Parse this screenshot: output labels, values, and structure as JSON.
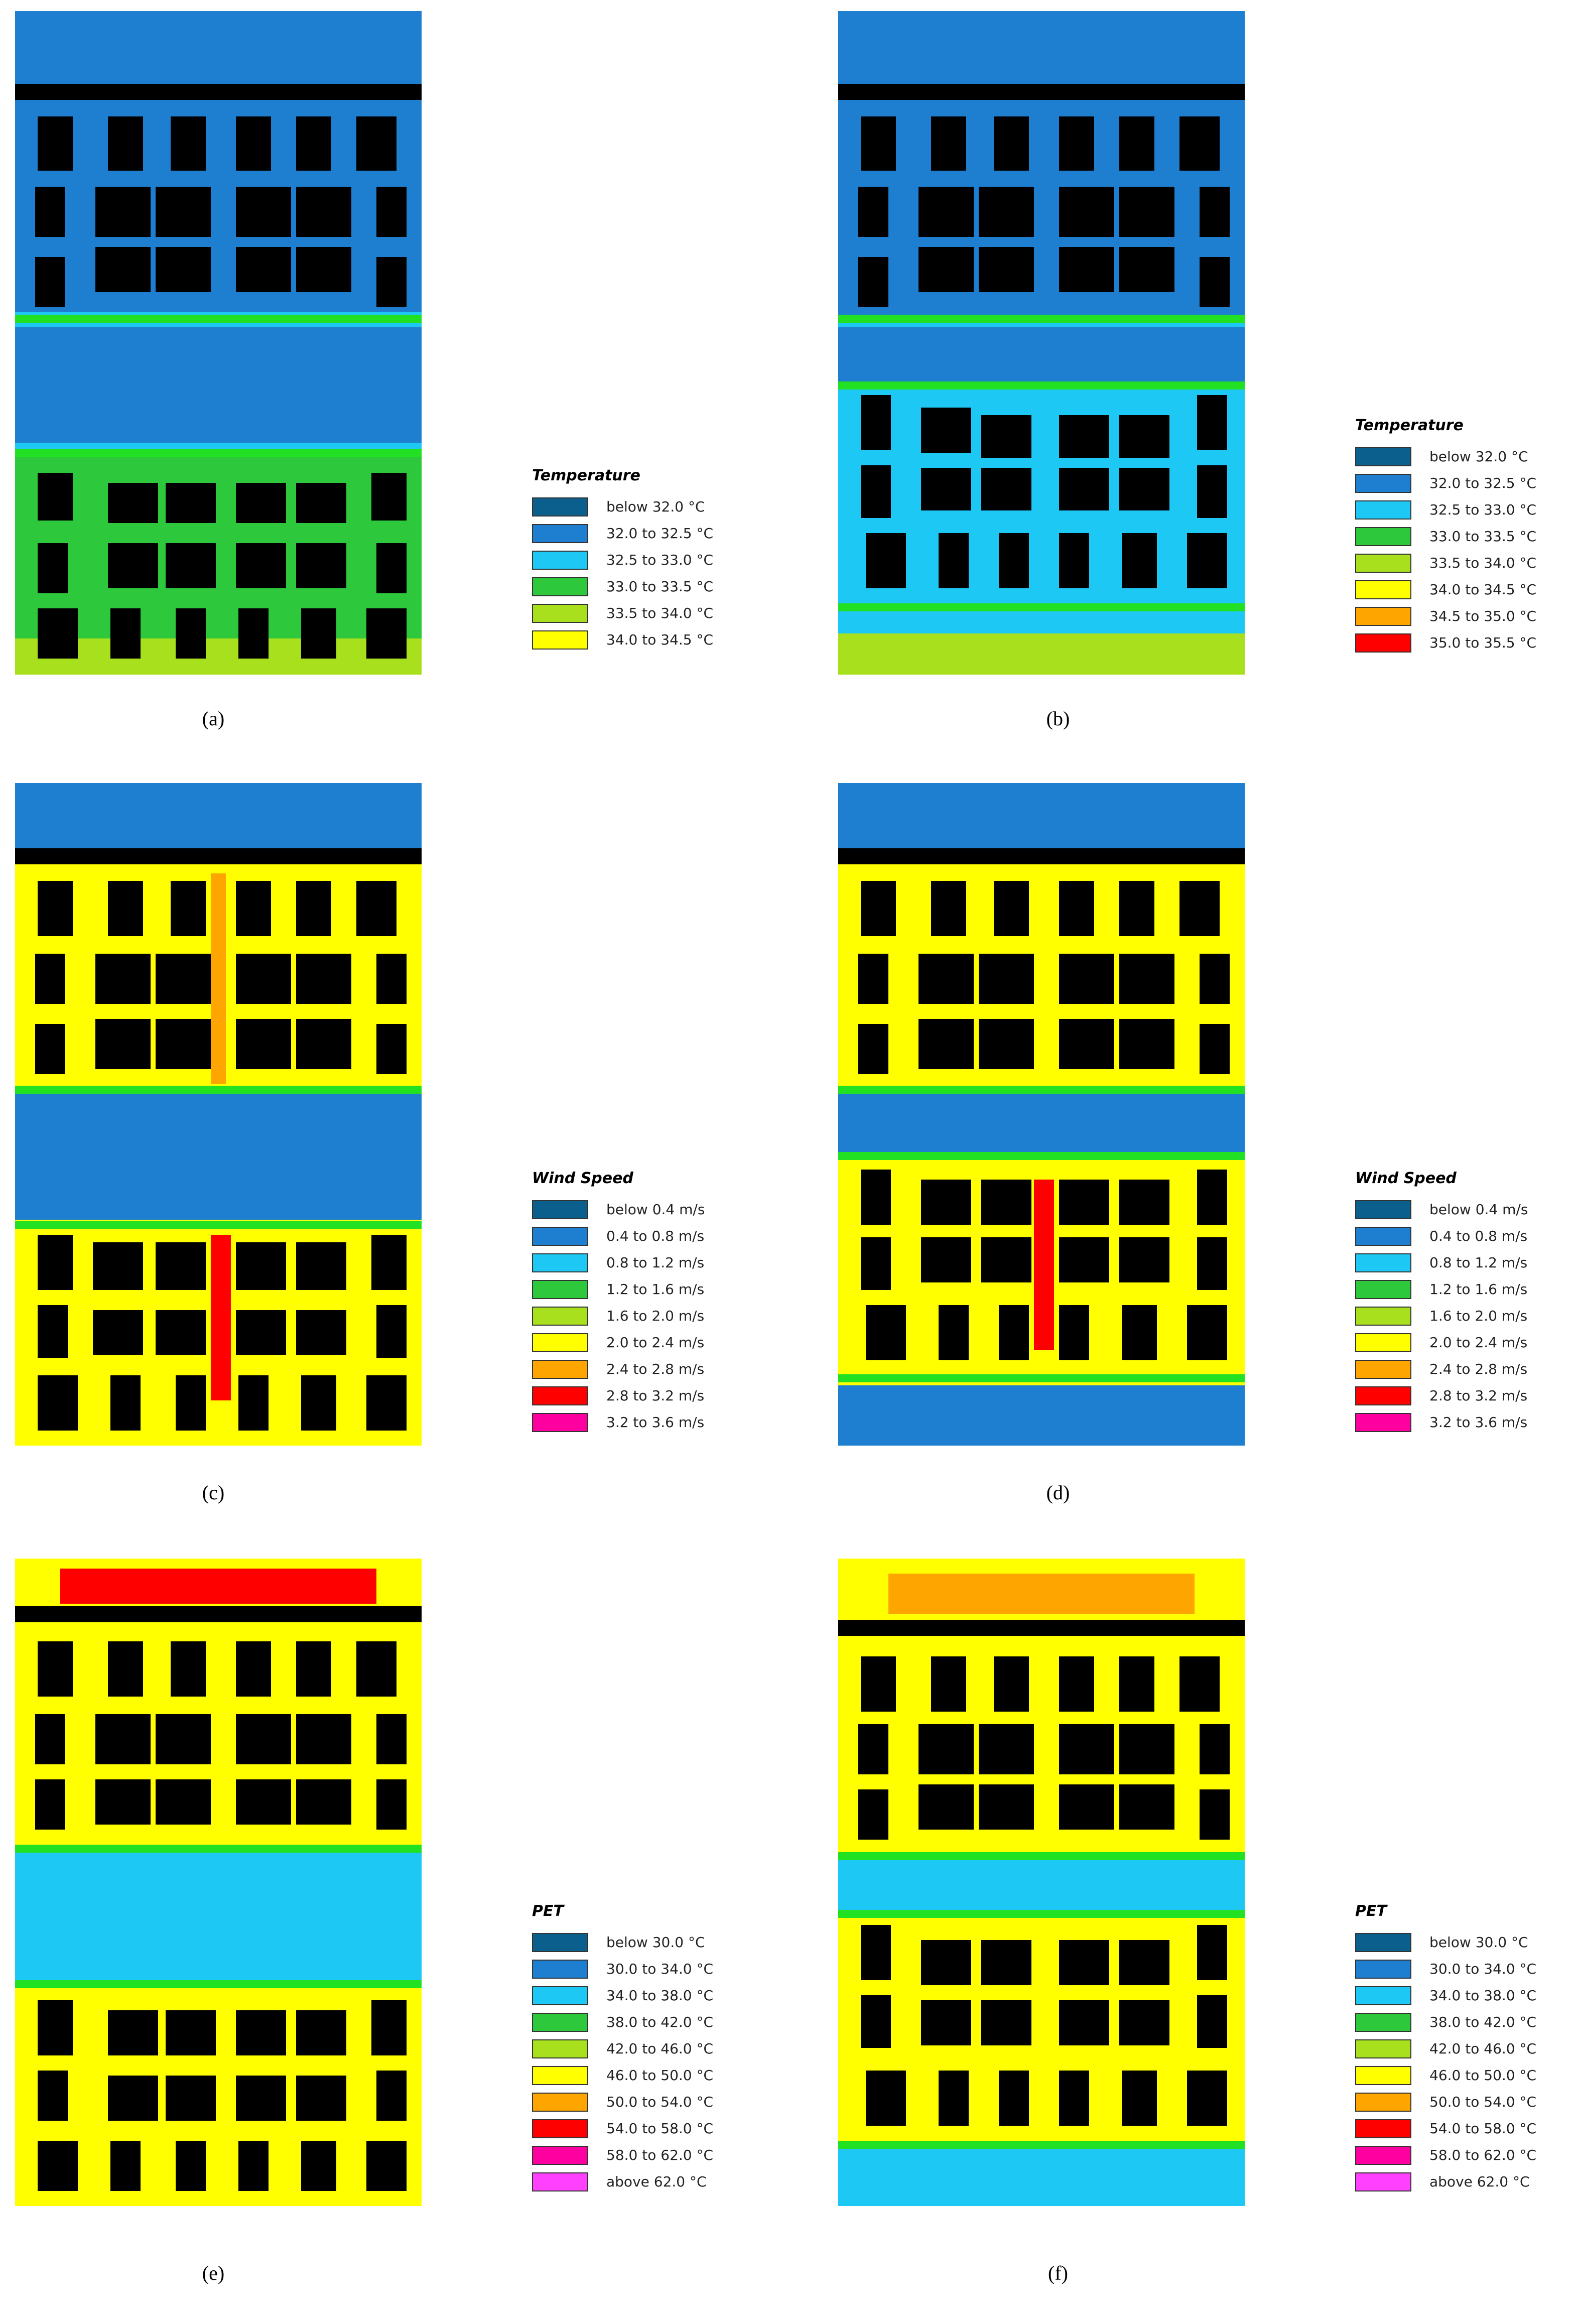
{
  "colors": {
    "building": "#000000",
    "road": "#22e022"
  },
  "panels": [
    {
      "caption": "(a)",
      "legend": "temperature_a"
    },
    {
      "caption": "(b)",
      "legend": "temperature_b"
    },
    {
      "caption": "(c)",
      "legend": "wind"
    },
    {
      "caption": "(d)",
      "legend": "wind"
    },
    {
      "caption": "(e)",
      "legend": "pet"
    },
    {
      "caption": "(f)",
      "legend": "pet"
    }
  ],
  "legends": {
    "temperature_a": {
      "title": "Temperature",
      "items": [
        {
          "label": "below 32.0 °C",
          "color": "#0a5f8c"
        },
        {
          "label": "32.0 to 32.5 °C",
          "color": "#1e7fd0"
        },
        {
          "label": "32.5 to 33.0 °C",
          "color": "#1ec8f5"
        },
        {
          "label": "33.0 to 33.5 °C",
          "color": "#2ec83c"
        },
        {
          "label": "33.5 to 34.0 °C",
          "color": "#a8e01e"
        },
        {
          "label": "34.0 to 34.5 °C",
          "color": "#ffff00"
        }
      ]
    },
    "temperature_b": {
      "title": "Temperature",
      "items": [
        {
          "label": "below 32.0 °C",
          "color": "#0a5f8c"
        },
        {
          "label": "32.0 to 32.5 °C",
          "color": "#1e7fd0"
        },
        {
          "label": "32.5 to 33.0 °C",
          "color": "#1ec8f5"
        },
        {
          "label": "33.0 to 33.5 °C",
          "color": "#2ec83c"
        },
        {
          "label": "33.5 to 34.0 °C",
          "color": "#a8e01e"
        },
        {
          "label": "34.0 to 34.5 °C",
          "color": "#ffff00"
        },
        {
          "label": "34.5 to 35.0 °C",
          "color": "#ffa500"
        },
        {
          "label": "35.0 to 35.5 °C",
          "color": "#ff0000"
        }
      ]
    },
    "wind": {
      "title": "Wind Speed",
      "items": [
        {
          "label": "below 0.4 m/s",
          "color": "#0a5f8c"
        },
        {
          "label": "0.4 to 0.8 m/s",
          "color": "#1e7fd0"
        },
        {
          "label": "0.8 to 1.2 m/s",
          "color": "#1ec8f5"
        },
        {
          "label": "1.2 to 1.6 m/s",
          "color": "#2ec83c"
        },
        {
          "label": "1.6 to 2.0 m/s",
          "color": "#a8e01e"
        },
        {
          "label": "2.0 to 2.4 m/s",
          "color": "#ffff00"
        },
        {
          "label": "2.4 to 2.8 m/s",
          "color": "#ffa500"
        },
        {
          "label": "2.8 to 3.2 m/s",
          "color": "#ff0000"
        },
        {
          "label": "3.2 to 3.6 m/s",
          "color": "#ff00a0"
        }
      ]
    },
    "pet": {
      "title": "PET",
      "items": [
        {
          "label": "below 30.0 °C",
          "color": "#0a5f8c"
        },
        {
          "label": "30.0 to 34.0 °C",
          "color": "#1e7fd0"
        },
        {
          "label": "34.0 to 38.0 °C",
          "color": "#1ec8f5"
        },
        {
          "label": "38.0 to 42.0 °C",
          "color": "#2ec83c"
        },
        {
          "label": "42.0 to 46.0 °C",
          "color": "#a8e01e"
        },
        {
          "label": "46.0 to 50.0 °C",
          "color": "#ffff00"
        },
        {
          "label": "50.0 to 54.0 °C",
          "color": "#ffa500"
        },
        {
          "label": "54.0 to 58.0 °C",
          "color": "#ff0000"
        },
        {
          "label": "58.0 to 62.0 °C",
          "color": "#ff00a0"
        },
        {
          "label": "above 62.0 °C",
          "color": "#ff40ff"
        }
      ]
    }
  }
}
